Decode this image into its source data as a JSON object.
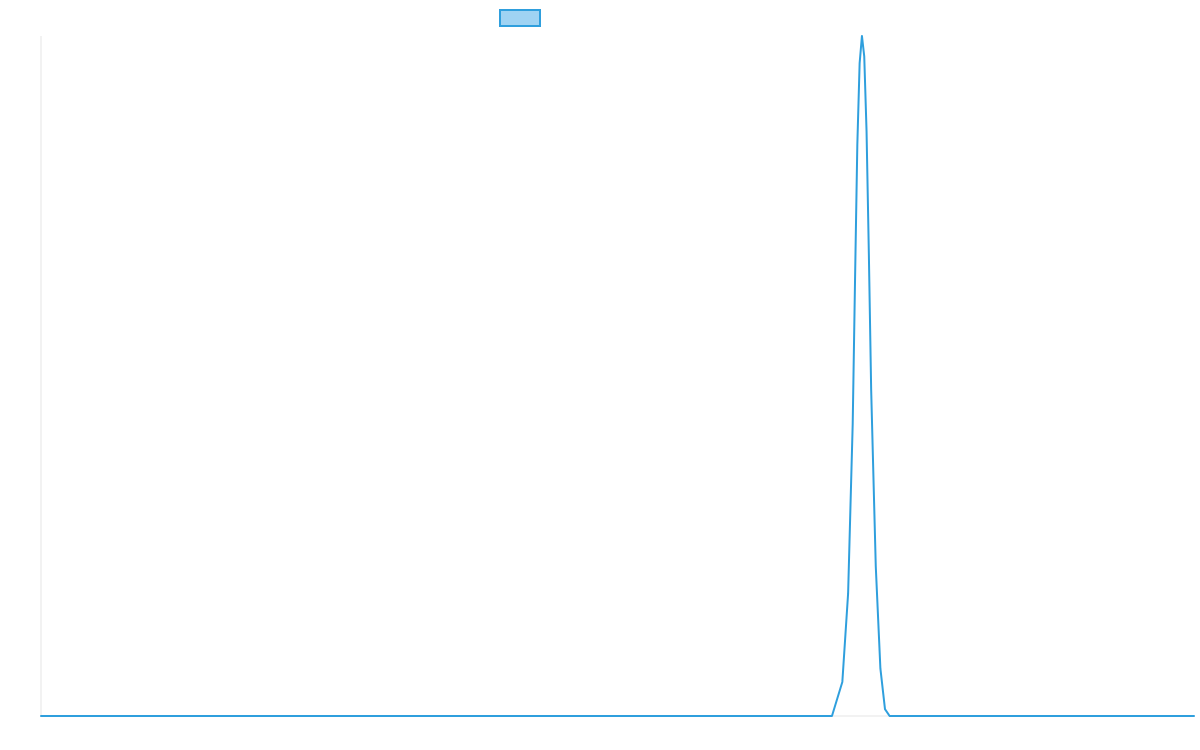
{
  "chart_data": {
    "type": "line",
    "title": "",
    "xlabel": "",
    "ylabel": "",
    "grid": false,
    "legend_placement": "top-center",
    "colors": {
      "line": "#2f9fdd",
      "legend_fill": "#9fd3f3",
      "axis": "#e6e6e6"
    },
    "xlim": [
      0,
      100
    ],
    "ylim": [
      0,
      1
    ],
    "series": [
      {
        "values_x": [
          0,
          68.6,
          69.5,
          70,
          70.4,
          70.6,
          70.8,
          71,
          71.2,
          71.4,
          71.6,
          71.8,
          72,
          72.4,
          72.8,
          73.2,
          73.6,
          74,
          74.5,
          100
        ],
        "values_y": [
          0,
          0,
          0.05,
          0.18,
          0.43,
          0.64,
          0.84,
          0.96,
          1.0,
          0.97,
          0.86,
          0.68,
          0.48,
          0.22,
          0.07,
          0.01,
          0.0,
          0.0,
          0,
          0
        ]
      }
    ]
  }
}
